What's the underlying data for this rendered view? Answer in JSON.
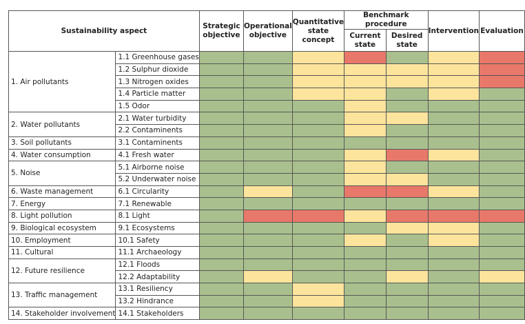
{
  "table": {
    "header": {
      "aspect": "Sustainability aspect",
      "strategic": "Strategic objective",
      "operational": "Operational objective",
      "quantitative": "Quantitative state concept",
      "benchmark": "Benchmark procedure",
      "current": "Current state",
      "desired": "Desired state",
      "intervention": "Intervention",
      "evaluation": "Evaluation"
    },
    "groups": [
      {
        "label": "1. Air pollutants",
        "items": [
          {
            "label": "1.1 Greenhouse gases",
            "colors": [
              "#a9c08e",
              "#a9c08e",
              "#fde49c",
              "#e8786a",
              "#a9c08e",
              "#fde49c",
              "#e8786a"
            ]
          },
          {
            "label": "1.2 Sulphur dioxide",
            "colors": [
              "#a9c08e",
              "#a9c08e",
              "#fde49c",
              "#fde49c",
              "#fde49c",
              "#fde49c",
              "#e8786a"
            ]
          },
          {
            "label": "1.3 Nitrogen oxides",
            "colors": [
              "#a9c08e",
              "#a9c08e",
              "#fde49c",
              "#fde49c",
              "#fde49c",
              "#fde49c",
              "#e8786a"
            ]
          },
          {
            "label": "1.4 Particle matter",
            "colors": [
              "#a9c08e",
              "#a9c08e",
              "#fde49c",
              "#fde49c",
              "#a9c08e",
              "#fde49c",
              "#a9c08e"
            ]
          },
          {
            "label": "1.5 Odor",
            "colors": [
              "#a9c08e",
              "#a9c08e",
              "#a9c08e",
              "#fde49c",
              "#a9c08e",
              "#a9c08e",
              "#a9c08e"
            ]
          }
        ]
      },
      {
        "label": "2. Water pollutants",
        "items": [
          {
            "label": "2.1 Water turbidity",
            "colors": [
              "#a9c08e",
              "#a9c08e",
              "#a9c08e",
              "#fde49c",
              "#fde49c",
              "#a9c08e",
              "#a9c08e"
            ]
          },
          {
            "label": "2.2 Contaminents",
            "colors": [
              "#a9c08e",
              "#a9c08e",
              "#a9c08e",
              "#fde49c",
              "#a9c08e",
              "#a9c08e",
              "#a9c08e"
            ]
          }
        ]
      },
      {
        "label": "3. Soil pollutants",
        "items": [
          {
            "label": "3.1 Contaminents",
            "colors": [
              "#a9c08e",
              "#a9c08e",
              "#a9c08e",
              "#a9c08e",
              "#a9c08e",
              "#a9c08e",
              "#a9c08e"
            ]
          }
        ]
      },
      {
        "label": "4. Water consumption",
        "items": [
          {
            "label": "4.1 Fresh water",
            "colors": [
              "#a9c08e",
              "#a9c08e",
              "#a9c08e",
              "#fde49c",
              "#e8786a",
              "#fde49c",
              "#a9c08e"
            ]
          }
        ]
      },
      {
        "label": "5. Noise",
        "items": [
          {
            "label": "5.1 Airborne noise",
            "colors": [
              "#a9c08e",
              "#a9c08e",
              "#a9c08e",
              "#fde49c",
              "#a9c08e",
              "#a9c08e",
              "#a9c08e"
            ]
          },
          {
            "label": "5.2 Underwater noise",
            "colors": [
              "#a9c08e",
              "#a9c08e",
              "#a9c08e",
              "#fde49c",
              "#fde49c",
              "#a9c08e",
              "#a9c08e"
            ]
          }
        ]
      },
      {
        "label": "6. Waste management",
        "items": [
          {
            "label": "6.1 Circularity",
            "colors": [
              "#a9c08e",
              "#fde49c",
              "#a9c08e",
              "#e8786a",
              "#e8786a",
              "#fde49c",
              "#a9c08e"
            ]
          }
        ]
      },
      {
        "label": "7. Energy",
        "items": [
          {
            "label": "7.1 Renewable",
            "colors": [
              "#a9c08e",
              "#a9c08e",
              "#a9c08e",
              "#a9c08e",
              "#a9c08e",
              "#a9c08e",
              "#a9c08e"
            ]
          }
        ]
      },
      {
        "label": "8. Light pollution",
        "items": [
          {
            "label": "8.1 Light",
            "colors": [
              "#a9c08e",
              "#e8786a",
              "#e8786a",
              "#fde49c",
              "#e8786a",
              "#e8786a",
              "#e8786a"
            ]
          }
        ]
      },
      {
        "label": "9. Biological ecosystem",
        "items": [
          {
            "label": "9.1 Ecosystems",
            "colors": [
              "#a9c08e",
              "#a9c08e",
              "#a9c08e",
              "#a9c08e",
              "#fde49c",
              "#fde49c",
              "#a9c08e"
            ]
          }
        ]
      },
      {
        "label": "10. Employment",
        "items": [
          {
            "label": "10.1 Safety",
            "colors": [
              "#a9c08e",
              "#a9c08e",
              "#a9c08e",
              "#fde49c",
              "#a9c08e",
              "#fde49c",
              "#a9c08e"
            ]
          }
        ]
      },
      {
        "label": "11. Cultural",
        "items": [
          {
            "label": "11.1 Archaeology",
            "colors": [
              "#a9c08e",
              "#a9c08e",
              "#a9c08e",
              "#a9c08e",
              "#a9c08e",
              "#a9c08e",
              "#a9c08e"
            ]
          }
        ]
      },
      {
        "label": "12. Future resilience",
        "items": [
          {
            "label": "12.1 Floods",
            "colors": [
              "#a9c08e",
              "#a9c08e",
              "#a9c08e",
              "#a9c08e",
              "#a9c08e",
              "#a9c08e",
              "#a9c08e"
            ]
          },
          {
            "label": "12.2 Adaptability",
            "colors": [
              "#a9c08e",
              "#fde49c",
              "#a9c08e",
              "#a9c08e",
              "#fde49c",
              "#a9c08e",
              "#fde49c"
            ]
          }
        ]
      },
      {
        "label": "13. Traffic management",
        "items": [
          {
            "label": "13.1 Resiliency",
            "colors": [
              "#a9c08e",
              "#a9c08e",
              "#fde49c",
              "#a9c08e",
              "#a9c08e",
              "#a9c08e",
              "#a9c08e"
            ]
          },
          {
            "label": "13.2 Hindrance",
            "colors": [
              "#a9c08e",
              "#a9c08e",
              "#fde49c",
              "#a9c08e",
              "#a9c08e",
              "#a9c08e",
              "#a9c08e"
            ]
          }
        ]
      },
      {
        "label": "14. Stakeholder involvement",
        "items": [
          {
            "label": "14.1 Stakeholders",
            "colors": [
              "#a9c08e",
              "#a9c08e",
              "#a9c08e",
              "#a9c08e",
              "#a9c08e",
              "#a9c08e",
              "#a9c08e"
            ]
          }
        ]
      }
    ]
  }
}
